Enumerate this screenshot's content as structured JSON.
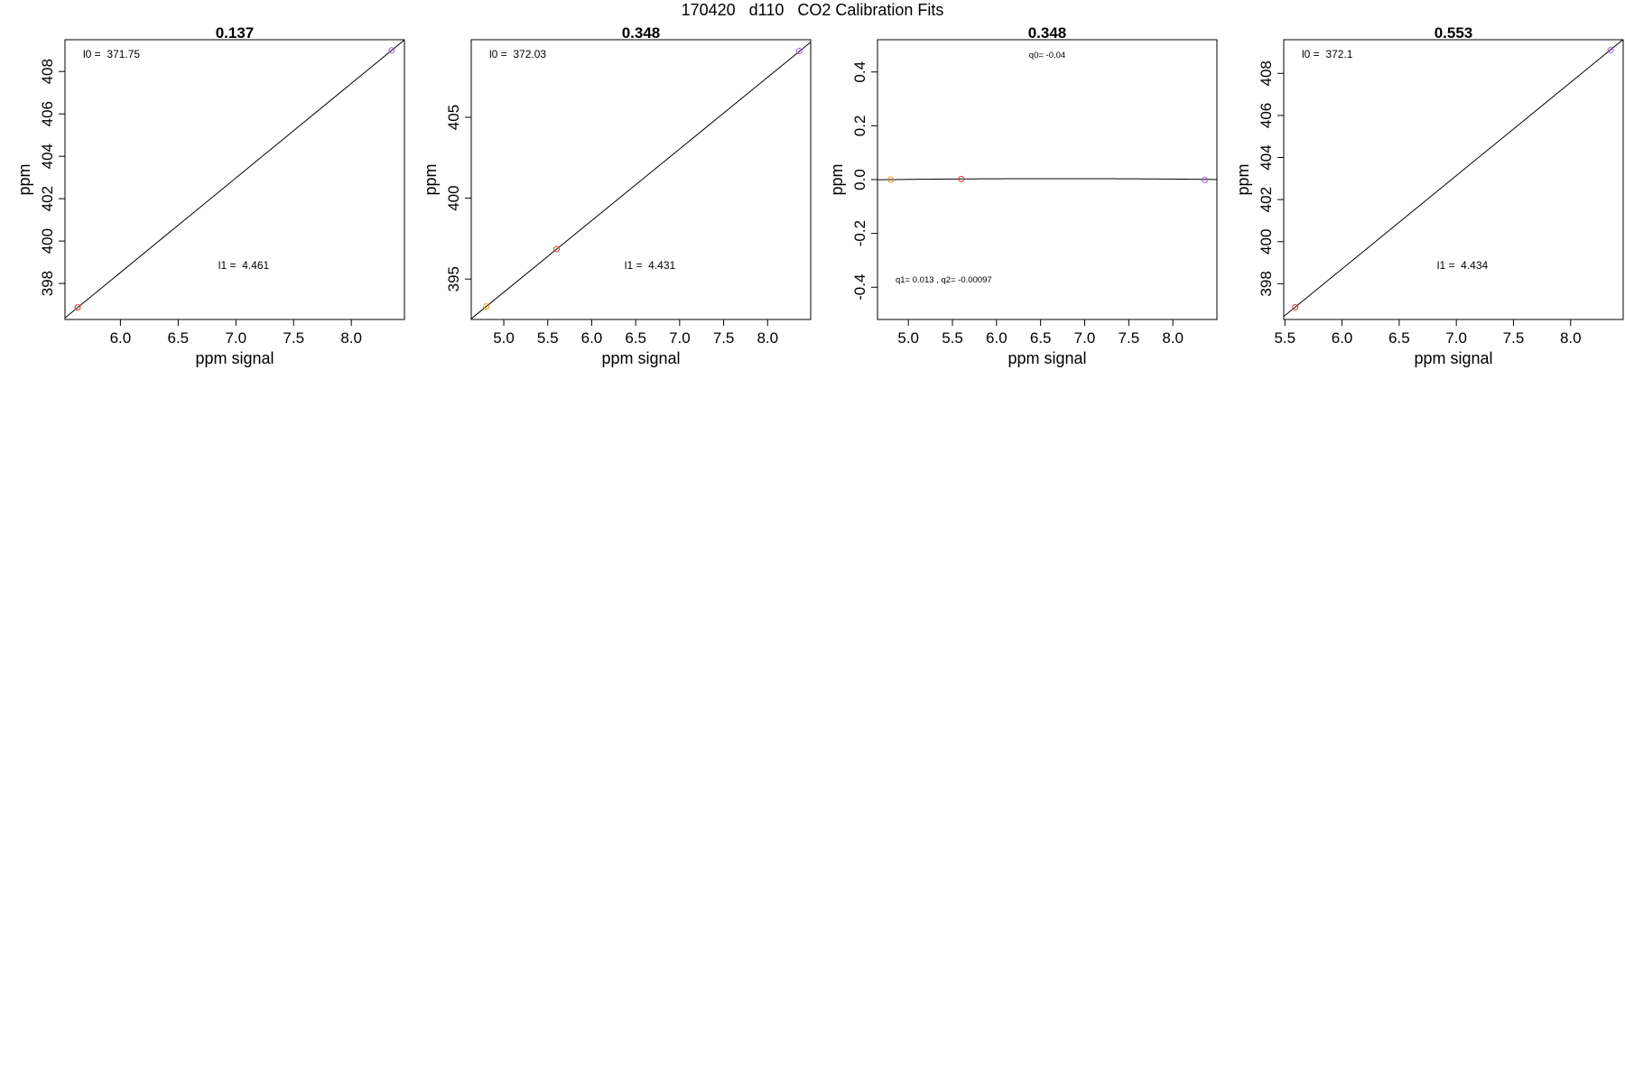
{
  "title": "170420   d110   CO2 Calibration Fits",
  "chart_data": [
    {
      "type": "scatter",
      "title": "0.137",
      "xlabel": "ppm signal",
      "ylabel": "ppm",
      "xlim": [
        5.52,
        8.46
      ],
      "ylim": [
        396.3,
        409.5
      ],
      "xticks": [
        "6.0",
        "6.5",
        "7.0",
        "7.5",
        "8.0"
      ],
      "yticks": [
        "398",
        "400",
        "402",
        "404",
        "406",
        "408"
      ],
      "points": [
        {
          "x": 5.63,
          "y": 396.87,
          "color": "#e8372d"
        },
        {
          "x": 8.35,
          "y": 409.0,
          "color": "#a25ad6"
        }
      ],
      "fit": {
        "kind": "linear",
        "l0": 371.75,
        "l1": 4.461
      },
      "annotations": [
        "l0 =  371.75",
        "l1 =  4.461"
      ]
    },
    {
      "type": "scatter",
      "title": "0.348",
      "xlabel": "ppm signal",
      "ylabel": "ppm",
      "xlim": [
        4.63,
        8.49
      ],
      "ylim": [
        392.5,
        409.8
      ],
      "xticks": [
        "5.0",
        "5.5",
        "6.0",
        "6.5",
        "7.0",
        "7.5",
        "8.0"
      ],
      "yticks": [
        "395",
        "400",
        "405"
      ],
      "points": [
        {
          "x": 4.8,
          "y": 393.3,
          "color": "#ff8c00"
        },
        {
          "x": 5.6,
          "y": 396.85,
          "color": "#e8372d"
        },
        {
          "x": 8.36,
          "y": 409.1,
          "color": "#a25ad6"
        }
      ],
      "fit": {
        "kind": "linear",
        "l0": 372.03,
        "l1": 4.431
      },
      "annotations": [
        "l0 =  372.03",
        "l1 =  4.431"
      ]
    },
    {
      "type": "scatter",
      "title": "0.348",
      "xlabel": "ppm signal",
      "ylabel": "ppm",
      "xlim": [
        4.65,
        8.5
      ],
      "ylim": [
        -0.52,
        0.52
      ],
      "xticks": [
        "5.0",
        "5.5",
        "6.0",
        "6.5",
        "7.0",
        "7.5",
        "8.0"
      ],
      "yticks": [
        "-0.4",
        "-0.2",
        "0.0",
        "0.2",
        "0.4"
      ],
      "points": [
        {
          "x": 4.8,
          "y": 0.0,
          "color": "#ff8c00"
        },
        {
          "x": 5.6,
          "y": 0.002,
          "color": "#e8372d"
        },
        {
          "x": 8.36,
          "y": -0.001,
          "color": "#a25ad6"
        }
      ],
      "fit": {
        "kind": "quadratic",
        "q0": -0.04,
        "q1": 0.013,
        "q2": -0.00097
      },
      "annotations": [
        "q0= -0.04",
        "q1= 0.013 , q2= -0.00097"
      ]
    },
    {
      "type": "scatter",
      "title": "0.553",
      "xlabel": "ppm signal",
      "ylabel": "ppm",
      "xlim": [
        5.49,
        8.46
      ],
      "ylim": [
        396.3,
        409.6
      ],
      "xticks": [
        "5.5",
        "6.0",
        "6.5",
        "7.0",
        "7.5",
        "8.0"
      ],
      "yticks": [
        "398",
        "400",
        "402",
        "404",
        "406",
        "408"
      ],
      "points": [
        {
          "x": 5.59,
          "y": 396.88,
          "color": "#e8372d"
        },
        {
          "x": 8.35,
          "y": 409.1,
          "color": "#a25ad6"
        }
      ],
      "fit": {
        "kind": "linear",
        "l0": 372.1,
        "l1": 4.434
      },
      "annotations": [
        "l0 =  372.1",
        "l1 =  4.434"
      ]
    }
  ]
}
